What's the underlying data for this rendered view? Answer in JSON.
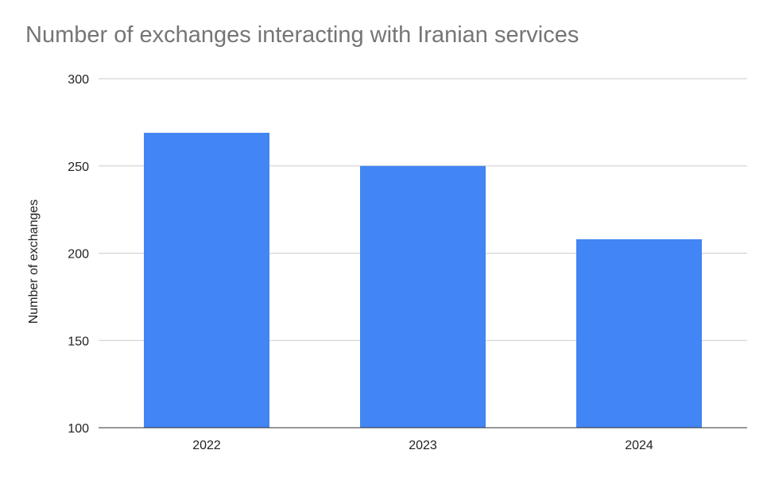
{
  "chart_data": {
    "type": "bar",
    "title": "Number of exchanges interacting with Iranian services",
    "xlabel": "",
    "ylabel": "Number of exchanges",
    "categories": [
      "2022",
      "2023",
      "2024"
    ],
    "values": [
      269,
      250,
      208
    ],
    "ylim": [
      100,
      300
    ],
    "yticks": [
      100,
      150,
      200,
      250,
      300
    ],
    "grid": true,
    "legend": "none",
    "bar_color": "#4285F4"
  }
}
